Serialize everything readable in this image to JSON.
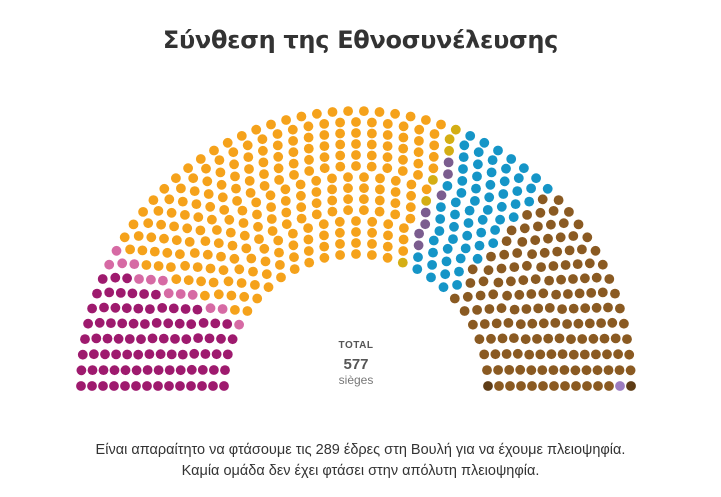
{
  "title": "Σύνθεση της Εθνοσυνέλευσης",
  "total": {
    "label": "TOTAL",
    "value": "577",
    "unit": "sièges"
  },
  "footnote": [
    "Είναι απαραίτητο να φτάσουμε τις 289 έδρες στη Βουλή για να έχουμε πλειοψηφία.",
    "Καμία ομάδα δεν έχει φτάσει στην απόλυτη πλειοψηφία."
  ],
  "chart_data": {
    "type": "hemicycle",
    "total_seats": 577,
    "majority": 289,
    "series": [
      {
        "values": [
          88
        ],
        "color": "#9e1a6e"
      },
      {
        "values": [
          13
        ],
        "color": "#d66aa4"
      },
      {
        "values": [
          250
        ],
        "color": "#f5a21b"
      },
      {
        "values": [
          6
        ],
        "color": "#d4ae14"
      },
      {
        "values": [
          7
        ],
        "color": "#7b5d8f"
      },
      {
        "values": [
          64
        ],
        "color": "#1595c7"
      },
      {
        "values": [
          146
        ],
        "color": "#8a5a22"
      },
      {
        "values": [
          2
        ],
        "color": "#5e3c16"
      },
      {
        "values": [
          1
        ],
        "color": "#9c7cc0"
      }
    ]
  }
}
